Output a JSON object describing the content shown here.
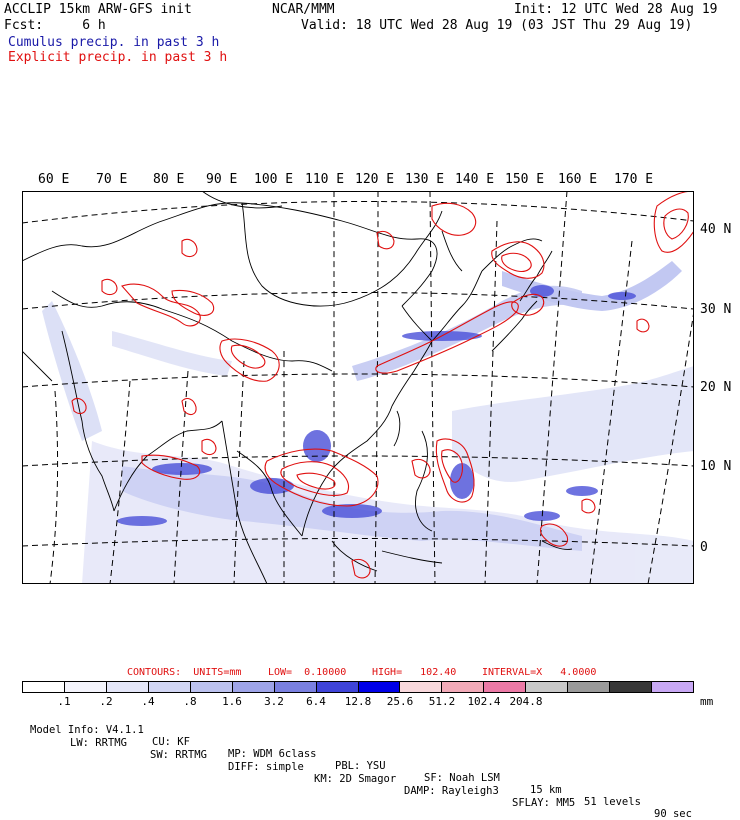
{
  "header": {
    "left_line1": "ACCLIP 15km ARW-GFS init",
    "left_line2": "Fcst:     6 h",
    "center": "NCAR/MMM",
    "init": "Init: 12 UTC Wed 28 Aug 19",
    "valid": "Valid: 18 UTC Wed 28 Aug 19 (03 JST Thu 29 Aug 19)",
    "cumulus_label": "Cumulus precip. in past 3 h",
    "explicit_label": "Explicit precip. in past 3 h"
  },
  "colors": {
    "cumulus": "#1a1aa8",
    "explicit": "#e01010",
    "coast": "#000000",
    "grid": "#000000"
  },
  "map": {
    "longitude_labels": [
      "60 E",
      "70 E",
      "80 E",
      "90 E",
      "100 E",
      "110 E",
      "120 E",
      "130 E",
      "140 E",
      "150 E",
      "160 E",
      "170 E"
    ],
    "latitude_labels": [
      "40 N",
      "30 N",
      "20 N",
      "10 N",
      "0"
    ]
  },
  "contours": {
    "units": "CONTOURS:  UNITS=mm",
    "low": "LOW=  0.10000",
    "high": "HIGH=   102.40",
    "interval": "INTERVAL=X   4.0000"
  },
  "colorbar": {
    "colors": [
      "#ffffff",
      "#f4f4fc",
      "#e4e6f8",
      "#d2d6f4",
      "#bcc2ef",
      "#9ea4e8",
      "#7a80e0",
      "#3f44d8",
      "#0000e8",
      "#f8d8dc",
      "#f2aab8",
      "#ec7aa6",
      "#c8c8c8",
      "#9a9a9a",
      "#383838",
      "#c8a8f4"
    ],
    "ticks": [
      ".1",
      ".2",
      ".4",
      ".8",
      "1.6",
      "3.2",
      "6.4",
      "12.8",
      "25.6",
      "51.2",
      "102.4",
      "204.8"
    ],
    "unit": "mm"
  },
  "model_info": {
    "line1": [
      "Model Info: V4.1.1",
      "CU: KF",
      "MP: WDM 6class",
      "PBL: YSU",
      "SF: Noah LSM",
      "15 km",
      "51 levels",
      "90 sec"
    ],
    "line2": [
      "LW: RRTMG",
      "SW: RRTMG",
      "DIFF: simple",
      "KM: 2D Smagor",
      "DAMP: Rayleigh3",
      "SFLAY: MM5"
    ]
  }
}
